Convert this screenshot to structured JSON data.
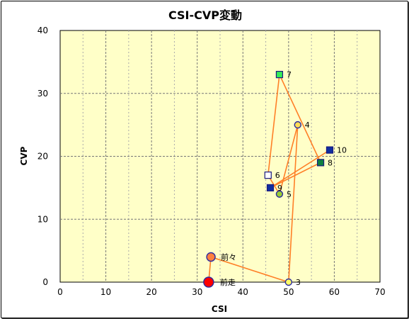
{
  "chart_data": {
    "type": "scatter",
    "title": "CSI-CVP変動",
    "xlabel": "CSI",
    "ylabel": "CVP",
    "xlim": [
      0,
      70
    ],
    "ylim": [
      0,
      40
    ],
    "xticks": [
      "0",
      "10",
      "20",
      "30",
      "40",
      "50",
      "60",
      "70"
    ],
    "yticks": [
      "0",
      "10",
      "20",
      "30",
      "40"
    ],
    "grid": true,
    "plot_background": "#ffffc8",
    "line_color": "#ff7f27",
    "points": [
      {
        "label": "前走",
        "x": 32.5,
        "y": 0,
        "marker": "circle",
        "size": "large",
        "fill": "#ff0000"
      },
      {
        "label": "前々",
        "x": 33,
        "y": 4,
        "marker": "circle",
        "size": "medium",
        "fill": "#ff7f3f"
      },
      {
        "label": "3",
        "x": 50,
        "y": 0,
        "marker": "circle",
        "size": "small",
        "fill": "#ffff66"
      },
      {
        "label": "4",
        "x": 52,
        "y": 25,
        "marker": "circle",
        "size": "small",
        "fill": "#ffdd55"
      },
      {
        "label": "5",
        "x": 48,
        "y": 14,
        "marker": "circle",
        "size": "small",
        "fill": "#99cc33"
      },
      {
        "label": "6",
        "x": 45.5,
        "y": 17,
        "marker": "square",
        "fill": "#ffffff"
      },
      {
        "label": "7",
        "x": 48,
        "y": 33,
        "marker": "square",
        "fill": "#33ee55"
      },
      {
        "label": "8",
        "x": 57,
        "y": 19,
        "marker": "square",
        "fill": "#0f8040"
      },
      {
        "label": "9",
        "x": 46,
        "y": 15,
        "marker": "square",
        "fill": "#102ea0"
      },
      {
        "label": "10",
        "x": 59,
        "y": 21,
        "marker": "square",
        "fill": "#102ea0"
      }
    ],
    "path_order": [
      "前走",
      "前々",
      "3",
      "4",
      "5",
      "6",
      "7",
      "8",
      "9",
      "10"
    ]
  }
}
